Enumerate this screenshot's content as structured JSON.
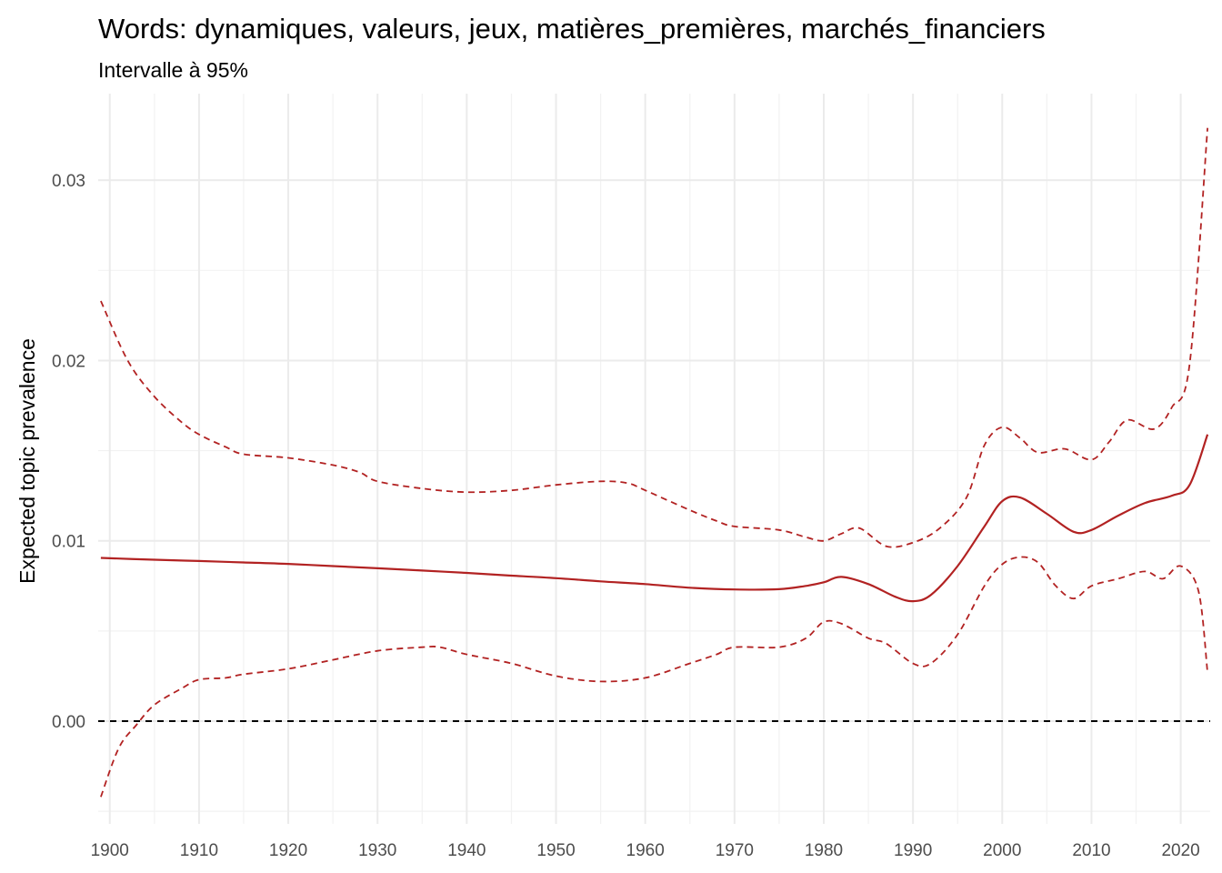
{
  "chart_data": {
    "type": "line",
    "title": "Words: dynamiques, valeurs, jeux, matières_premières, marchés_financiers",
    "subtitle": "Intervalle à 95%",
    "xlabel": "",
    "ylabel": "Expected topic prevalence",
    "xlim": [
      1898.7,
      2023.3
    ],
    "ylim": [
      -0.0057,
      0.0348
    ],
    "x_ticks": [
      1900,
      1910,
      1920,
      1930,
      1940,
      1950,
      1960,
      1970,
      1980,
      1990,
      2000,
      2010,
      2020
    ],
    "y_ticks": [
      0.0,
      0.01,
      0.02,
      0.03
    ],
    "y_tick_labels": [
      "0.00",
      "0.01",
      "0.02",
      "0.03"
    ],
    "grid": true,
    "reference_line": {
      "y": 0,
      "style": "dashed",
      "color": "#000000"
    },
    "colors": {
      "series": "#b22222",
      "reference": "#000000"
    },
    "series": [
      {
        "role": "estimate",
        "style": "solid",
        "x": [
          1899,
          1905,
          1910,
          1915,
          1920,
          1925,
          1930,
          1935,
          1940,
          1945,
          1950,
          1955,
          1960,
          1965,
          1970,
          1975,
          1978,
          1980,
          1982,
          1985,
          1988,
          1990,
          1992,
          1995,
          1998,
          2000,
          2002,
          2005,
          2008,
          2010,
          2013,
          2016,
          2019,
          2021,
          2023
        ],
        "y": [
          0.00905,
          0.00895,
          0.00888,
          0.0088,
          0.00872,
          0.0086,
          0.00848,
          0.00835,
          0.00822,
          0.00807,
          0.00793,
          0.00775,
          0.0076,
          0.0074,
          0.0073,
          0.00732,
          0.0075,
          0.0077,
          0.008,
          0.0076,
          0.0069,
          0.00665,
          0.007,
          0.0086,
          0.0108,
          0.0122,
          0.0124,
          0.0115,
          0.0105,
          0.0106,
          0.0114,
          0.0121,
          0.0125,
          0.0131,
          0.0159
        ]
      },
      {
        "role": "upper 95%",
        "style": "dashed",
        "x": [
          1899,
          1902,
          1905,
          1908,
          1910,
          1913,
          1915,
          1920,
          1925,
          1928,
          1930,
          1935,
          1940,
          1945,
          1950,
          1955,
          1958,
          1960,
          1965,
          1968,
          1970,
          1975,
          1978,
          1980,
          1982,
          1984,
          1987,
          1990,
          1993,
          1996,
          1998,
          2000,
          2002,
          2004,
          2007,
          2010,
          2012,
          2014,
          2017,
          2019,
          2021,
          2023
        ],
        "y": [
          0.0233,
          0.02,
          0.018,
          0.0166,
          0.0159,
          0.0152,
          0.0148,
          0.0146,
          0.0142,
          0.0138,
          0.0133,
          0.0129,
          0.0127,
          0.0128,
          0.0131,
          0.0133,
          0.0132,
          0.0128,
          0.0117,
          0.0111,
          0.0108,
          0.0106,
          0.0102,
          0.01,
          0.0104,
          0.0107,
          0.0097,
          0.0099,
          0.0107,
          0.0124,
          0.0153,
          0.0163,
          0.0157,
          0.0149,
          0.0151,
          0.0145,
          0.0155,
          0.0167,
          0.0162,
          0.0174,
          0.0198,
          0.0329
        ]
      },
      {
        "role": "lower 95%",
        "style": "dashed",
        "x": [
          1899,
          1901,
          1903,
          1905,
          1908,
          1910,
          1913,
          1915,
          1920,
          1925,
          1930,
          1935,
          1937,
          1940,
          1945,
          1950,
          1955,
          1960,
          1965,
          1968,
          1970,
          1975,
          1978,
          1980,
          1982,
          1985,
          1987,
          1990,
          1992,
          1995,
          1998,
          2000,
          2002,
          2004,
          2006,
          2008,
          2010,
          2013,
          2016,
          2018,
          2020,
          2022,
          2023
        ],
        "y": [
          -0.0042,
          -0.0015,
          -0.0002,
          0.0009,
          0.0018,
          0.0023,
          0.0024,
          0.0026,
          0.0029,
          0.0034,
          0.0039,
          0.0041,
          0.0041,
          0.0037,
          0.0032,
          0.0025,
          0.0022,
          0.0024,
          0.0032,
          0.0037,
          0.0041,
          0.0041,
          0.0046,
          0.0055,
          0.0054,
          0.0046,
          0.0043,
          0.0032,
          0.0032,
          0.0048,
          0.0075,
          0.0087,
          0.0091,
          0.0088,
          0.0075,
          0.0068,
          0.0075,
          0.0079,
          0.0083,
          0.0079,
          0.0086,
          0.0072,
          0.0027
        ]
      }
    ]
  }
}
